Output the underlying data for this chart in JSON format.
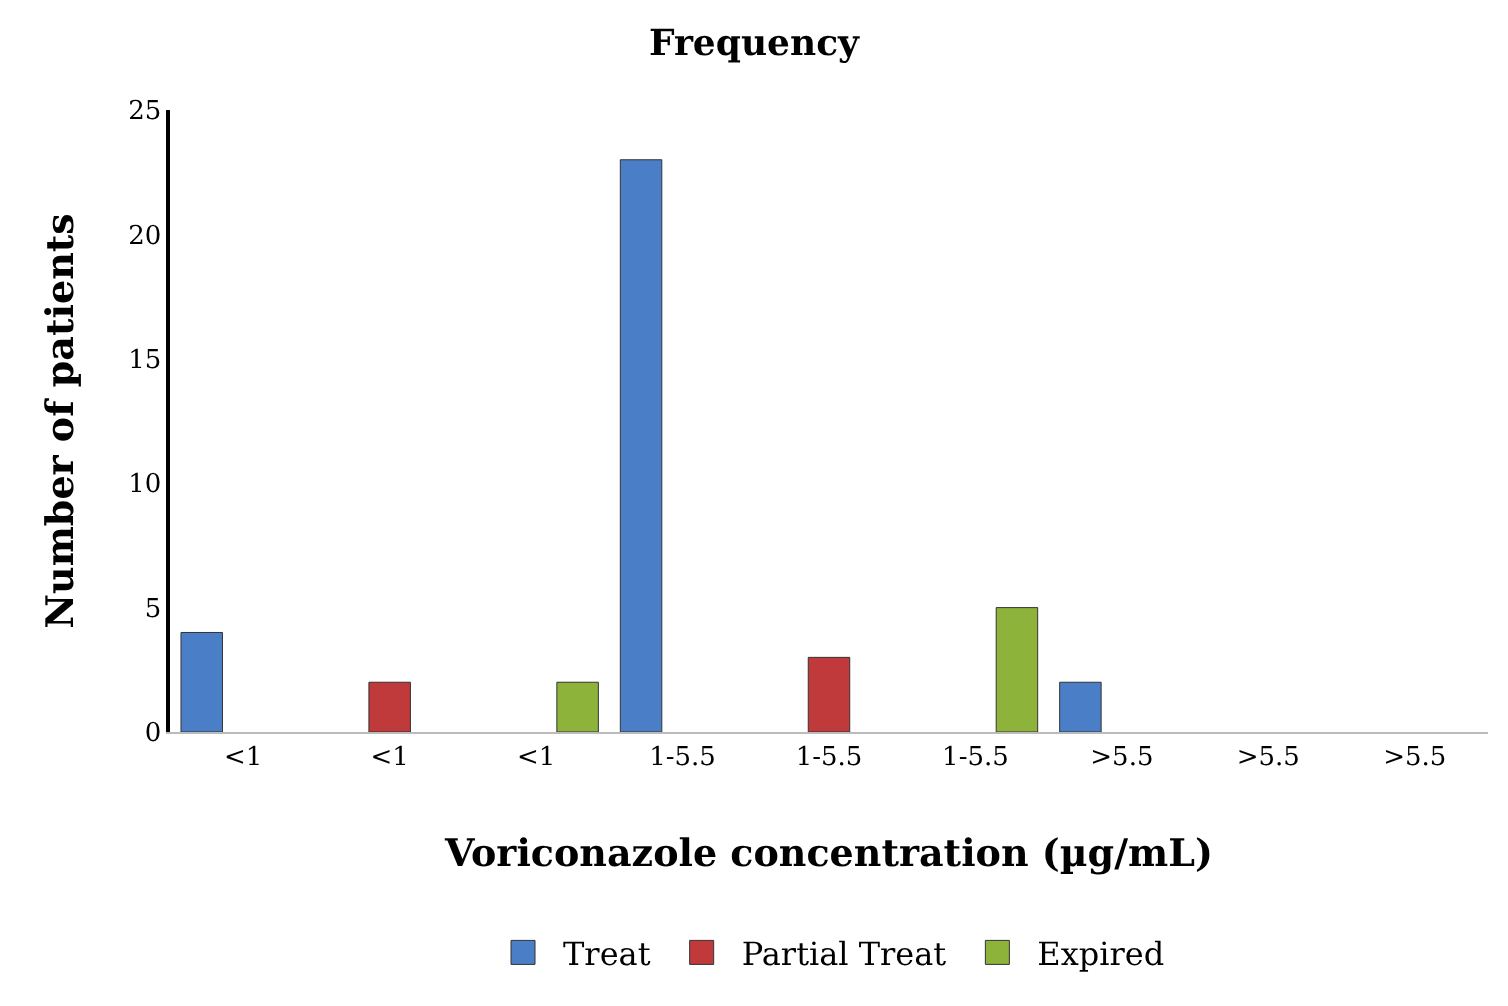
{
  "chart_data": {
    "type": "bar",
    "title": "Frequency",
    "xlabel": "Voriconazole concentration (µg/mL)",
    "ylabel": "Number of patients",
    "categories": [
      "<1",
      "<1",
      "<1",
      "1-5.5",
      "1-5.5",
      "1-5.5",
      ">5.5",
      ">5.5",
      ">5.5"
    ],
    "series": [
      {
        "name": "Treat",
        "color": "#4a7fc8",
        "values": [
          4,
          null,
          null,
          23,
          null,
          null,
          2,
          null,
          null
        ]
      },
      {
        "name": "Partial Treat",
        "color": "#c0393b",
        "values": [
          null,
          2,
          null,
          null,
          3,
          null,
          null,
          null,
          null
        ]
      },
      {
        "name": "Expired",
        "color": "#8db33a",
        "values": [
          null,
          null,
          2,
          null,
          null,
          5,
          null,
          null,
          null
        ]
      }
    ],
    "ylim": [
      0,
      25
    ],
    "yticks": [
      0,
      5,
      10,
      15,
      20,
      25
    ],
    "grid": false,
    "legend": "bottom"
  }
}
